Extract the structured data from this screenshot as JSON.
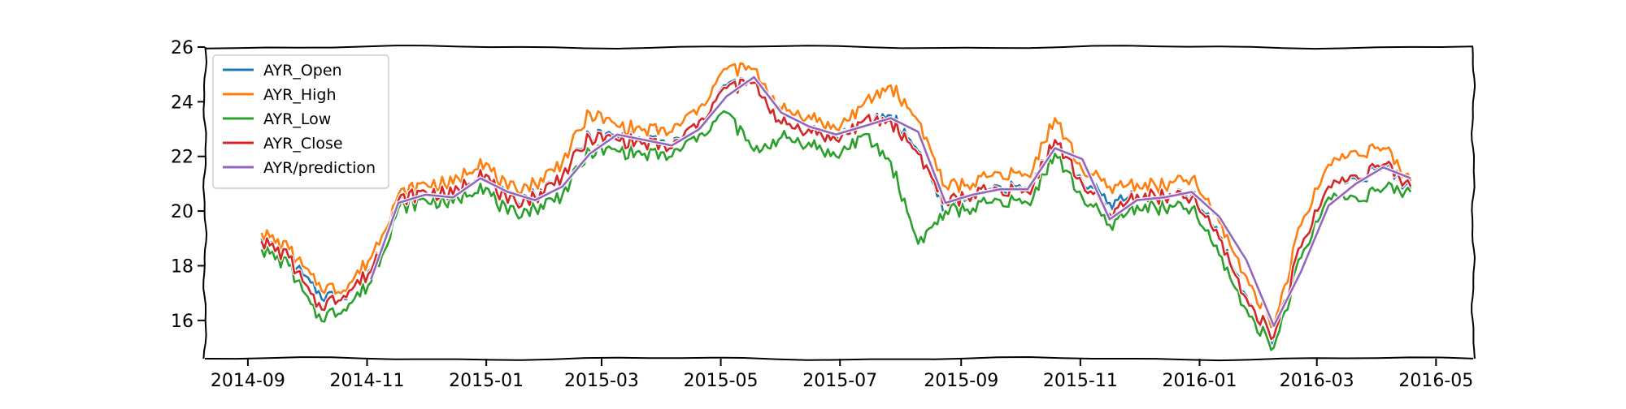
{
  "chart_data": {
    "type": "line",
    "title": "",
    "xlabel": "",
    "ylabel": "",
    "ylim": [
      14.6,
      26.0
    ],
    "xlim": [
      "2014-08-10",
      "2016-05-20"
    ],
    "x_ticks": [
      "2014-09",
      "2014-11",
      "2015-01",
      "2015-03",
      "2015-05",
      "2015-07",
      "2015-09",
      "2015-11",
      "2016-01",
      "2016-03",
      "2016-05"
    ],
    "y_ticks": [
      16,
      18,
      20,
      22,
      24,
      26
    ],
    "grid": false,
    "legend_position": "top-left",
    "x": [
      "2014-09-08",
      "2014-09-22",
      "2014-10-06",
      "2014-10-20",
      "2014-11-03",
      "2014-11-17",
      "2014-12-01",
      "2014-12-15",
      "2014-12-29",
      "2015-01-12",
      "2015-01-26",
      "2015-02-09",
      "2015-02-23",
      "2015-03-09",
      "2015-03-23",
      "2015-04-06",
      "2015-04-20",
      "2015-05-04",
      "2015-05-18",
      "2015-06-01",
      "2015-06-15",
      "2015-06-29",
      "2015-07-13",
      "2015-07-27",
      "2015-08-10",
      "2015-08-24",
      "2015-09-07",
      "2015-09-21",
      "2015-10-05",
      "2015-10-19",
      "2015-11-02",
      "2015-11-16",
      "2015-11-30",
      "2015-12-14",
      "2015-12-28",
      "2016-01-11",
      "2016-01-25",
      "2016-02-08",
      "2016-02-22",
      "2016-03-07",
      "2016-03-21",
      "2016-04-04",
      "2016-04-18"
    ],
    "series": [
      {
        "name": "AYR_Open",
        "color": "#1f77b4",
        "values": [
          19.0,
          18.3,
          17.0,
          16.8,
          17.9,
          20.3,
          20.7,
          20.6,
          21.5,
          20.4,
          20.6,
          21.3,
          22.8,
          22.7,
          22.6,
          22.4,
          23.3,
          24.6,
          24.7,
          23.2,
          23.0,
          22.7,
          23.3,
          23.5,
          22.2,
          20.0,
          20.6,
          20.9,
          20.8,
          22.6,
          21.1,
          20.3,
          20.6,
          20.5,
          20.6,
          19.1,
          16.9,
          15.2,
          18.7,
          20.9,
          21.2,
          21.6,
          20.8
        ]
      },
      {
        "name": "AYR_High",
        "color": "#ff7f0e",
        "values": [
          19.2,
          18.6,
          17.3,
          17.1,
          18.3,
          20.6,
          21.0,
          21.0,
          21.9,
          20.8,
          21.0,
          21.8,
          23.6,
          23.1,
          23.0,
          22.9,
          23.8,
          25.2,
          25.2,
          23.7,
          23.5,
          23.0,
          23.9,
          24.6,
          23.3,
          20.9,
          21.0,
          21.4,
          21.3,
          23.4,
          21.5,
          20.9,
          21.0,
          20.9,
          21.2,
          19.6,
          17.6,
          15.8,
          19.5,
          21.7,
          22.2,
          22.3,
          21.1
        ]
      },
      {
        "name": "AYR_Low",
        "color": "#2ca02c",
        "values": [
          18.6,
          18.0,
          16.1,
          16.4,
          17.4,
          20.1,
          20.4,
          20.3,
          21.0,
          19.9,
          20.1,
          20.6,
          22.2,
          22.2,
          22.1,
          22.0,
          22.8,
          23.6,
          22.2,
          22.7,
          22.5,
          22.0,
          22.8,
          21.8,
          18.8,
          20.0,
          20.1,
          20.4,
          20.3,
          22.1,
          20.5,
          19.5,
          20.2,
          20.1,
          20.1,
          18.4,
          16.4,
          15.0,
          18.3,
          20.5,
          20.5,
          20.8,
          20.7
        ]
      },
      {
        "name": "AYR_Close",
        "color": "#d62728",
        "values": [
          18.9,
          18.3,
          16.5,
          16.9,
          17.8,
          20.4,
          20.7,
          20.6,
          21.5,
          20.3,
          20.5,
          21.3,
          22.7,
          22.6,
          22.5,
          22.3,
          23.3,
          24.5,
          24.7,
          23.2,
          23.0,
          22.6,
          23.3,
          23.3,
          22.1,
          20.3,
          20.6,
          20.8,
          20.7,
          22.6,
          21.0,
          19.9,
          20.6,
          20.5,
          20.5,
          19.0,
          16.8,
          15.4,
          18.7,
          20.9,
          21.3,
          21.7,
          20.9
        ]
      },
      {
        "name": "AYR/prediction",
        "color": "#9467bd",
        "values": [
          null,
          null,
          null,
          null,
          17.5,
          20.3,
          20.6,
          20.5,
          21.2,
          20.7,
          20.4,
          20.9,
          22.1,
          22.8,
          22.6,
          22.4,
          23.0,
          24.2,
          24.9,
          23.6,
          23.1,
          22.8,
          23.1,
          23.4,
          22.9,
          20.3,
          20.6,
          20.8,
          20.8,
          22.3,
          21.9,
          19.7,
          20.4,
          20.5,
          20.7,
          19.8,
          18.2,
          15.8,
          17.8,
          20.2,
          21.0,
          21.6,
          21.2
        ]
      }
    ]
  }
}
